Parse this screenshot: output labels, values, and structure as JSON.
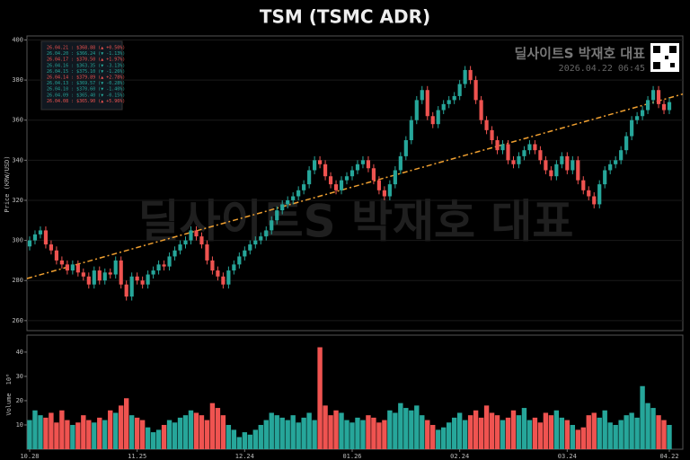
{
  "chart_data": {
    "type": "candlestick",
    "title": "TSM (TSMC ADR)",
    "ylabel": "Price (KRW/USD)",
    "volume_label": "Volume",
    "volume_unit": "10⁶",
    "watermark": "딜사이트S 박재호 대표",
    "stamp_title": "딜사이트S 박재호 대표",
    "stamp_time": "2026.04.22 06:45",
    "up_color": "#26a69a",
    "down_color": "#ef5350",
    "trend_color": "#f0a030",
    "ylim": [
      255,
      402
    ],
    "yticks": [
      260,
      280,
      300,
      320,
      340,
      360,
      380,
      400
    ],
    "volume_ylim": [
      0,
      47
    ],
    "volume_yticks": [
      10,
      20,
      30,
      40
    ],
    "trend": {
      "start": 281,
      "end": 373
    },
    "legend": [
      {
        "text": "26.04.21 : $368.88 (▲ +0.50%)",
        "color": "#ef5350"
      },
      {
        "text": "26.04.20 : $366.24 (▼ -1.13%)",
        "color": "#26a69a"
      },
      {
        "text": "26.04.17 : $370.50 (▲ +1.97%)",
        "color": "#ef5350"
      },
      {
        "text": "26.04.16 : $363.35 (▼ -3.13%)",
        "color": "#26a69a"
      },
      {
        "text": "26.04.15 : $375.10 (▼ -1.26%)",
        "color": "#26a69a"
      },
      {
        "text": "26.04.14 : $379.89 (▲ +2.78%)",
        "color": "#ef5350"
      },
      {
        "text": "26.04.13 : $369.57 (▼ -0.28%)",
        "color": "#26a69a"
      },
      {
        "text": "26.04.10 : $370.60 (▼ -1.40%)",
        "color": "#26a69a"
      },
      {
        "text": "26.04.09 : $365.40 (▼ -0.15%)",
        "color": "#26a69a"
      },
      {
        "text": "26.04.08 : $365.90 (▲ +5.96%)",
        "color": "#ef5350"
      }
    ],
    "categories": [
      "10.28",
      null,
      null,
      null,
      null,
      null,
      null,
      null,
      null,
      null,
      null,
      null,
      null,
      null,
      null,
      null,
      null,
      null,
      null,
      null,
      "11.25",
      null,
      null,
      null,
      null,
      null,
      null,
      null,
      null,
      null,
      null,
      null,
      null,
      null,
      null,
      null,
      null,
      null,
      null,
      null,
      "12.24",
      null,
      null,
      null,
      null,
      null,
      null,
      null,
      null,
      null,
      null,
      null,
      null,
      null,
      null,
      null,
      null,
      null,
      null,
      null,
      "01.26",
      null,
      null,
      null,
      null,
      null,
      null,
      null,
      null,
      null,
      null,
      null,
      null,
      null,
      null,
      null,
      null,
      null,
      null,
      null,
      "02.24",
      null,
      null,
      null,
      null,
      null,
      null,
      null,
      null,
      null,
      null,
      null,
      null,
      null,
      null,
      null,
      null,
      null,
      null,
      null,
      "03.24",
      null,
      null,
      null,
      null,
      null,
      null,
      null,
      null,
      null,
      null,
      null,
      null,
      null,
      null,
      null,
      null,
      null,
      null,
      "04.22"
    ],
    "open": [
      297,
      300,
      303,
      305,
      298,
      295,
      290,
      288,
      285,
      288,
      284,
      282,
      278,
      285,
      280,
      284,
      283,
      290,
      278,
      272,
      282,
      280,
      278,
      283,
      285,
      288,
      287,
      292,
      295,
      298,
      300,
      305,
      302,
      298,
      290,
      285,
      282,
      278,
      285,
      288,
      292,
      295,
      298,
      300,
      302,
      305,
      310,
      315,
      318,
      320,
      322,
      325,
      328,
      335,
      340,
      338,
      332,
      328,
      325,
      330,
      332,
      335,
      338,
      340,
      336,
      330,
      325,
      322,
      328,
      335,
      342,
      350,
      360,
      370,
      375,
      362,
      358,
      365,
      368,
      370,
      372,
      378,
      385,
      380,
      370,
      360,
      355,
      350,
      345,
      348,
      340,
      338,
      342,
      345,
      348,
      345,
      340,
      335,
      332,
      338,
      342,
      335,
      340,
      330,
      325,
      322,
      318,
      328,
      335,
      338,
      340,
      345,
      352,
      360,
      362,
      365,
      370,
      375,
      368,
      365
    ],
    "high": [
      302,
      305,
      307,
      307,
      300,
      297,
      292,
      290,
      290,
      290,
      286,
      284,
      287,
      287,
      286,
      286,
      292,
      292,
      280,
      284,
      284,
      282,
      285,
      287,
      290,
      290,
      294,
      297,
      300,
      302,
      307,
      307,
      304,
      300,
      292,
      287,
      284,
      287,
      290,
      294,
      297,
      300,
      302,
      304,
      307,
      312,
      317,
      320,
      322,
      324,
      327,
      330,
      337,
      342,
      342,
      340,
      334,
      330,
      332,
      334,
      337,
      340,
      342,
      342,
      338,
      332,
      327,
      330,
      337,
      344,
      352,
      362,
      372,
      377,
      377,
      364,
      367,
      370,
      372,
      374,
      380,
      387,
      387,
      382,
      372,
      362,
      357,
      352,
      350,
      350,
      342,
      344,
      347,
      350,
      350,
      347,
      342,
      337,
      340,
      344,
      344,
      342,
      342,
      332,
      327,
      324,
      330,
      337,
      340,
      342,
      347,
      354,
      362,
      364,
      367,
      372,
      377,
      377,
      370,
      371
    ],
    "low": [
      295,
      298,
      301,
      296,
      293,
      288,
      286,
      283,
      283,
      282,
      280,
      276,
      276,
      278,
      278,
      281,
      281,
      276,
      270,
      270,
      278,
      276,
      276,
      281,
      283,
      285,
      285,
      290,
      293,
      296,
      298,
      300,
      296,
      288,
      283,
      280,
      276,
      276,
      283,
      286,
      290,
      293,
      296,
      298,
      300,
      303,
      308,
      313,
      316,
      318,
      320,
      323,
      326,
      333,
      336,
      330,
      326,
      323,
      323,
      328,
      330,
      333,
      336,
      334,
      328,
      323,
      320,
      320,
      326,
      333,
      340,
      348,
      358,
      368,
      360,
      356,
      356,
      363,
      366,
      368,
      370,
      376,
      378,
      368,
      358,
      353,
      348,
      343,
      343,
      338,
      336,
      336,
      340,
      343,
      343,
      338,
      333,
      330,
      330,
      336,
      333,
      333,
      328,
      323,
      320,
      316,
      316,
      326,
      333,
      336,
      338,
      343,
      350,
      358,
      360,
      363,
      368,
      366,
      363,
      363
    ],
    "close": [
      300,
      303,
      305,
      298,
      295,
      290,
      288,
      285,
      288,
      284,
      282,
      278,
      285,
      280,
      284,
      283,
      290,
      278,
      272,
      282,
      280,
      278,
      283,
      285,
      288,
      287,
      292,
      295,
      298,
      300,
      305,
      302,
      298,
      290,
      285,
      282,
      278,
      285,
      288,
      292,
      295,
      298,
      300,
      302,
      305,
      310,
      315,
      318,
      320,
      322,
      325,
      328,
      335,
      340,
      338,
      332,
      328,
      325,
      330,
      332,
      335,
      338,
      340,
      336,
      330,
      325,
      322,
      328,
      335,
      342,
      350,
      360,
      370,
      375,
      362,
      358,
      365,
      368,
      370,
      372,
      378,
      385,
      380,
      370,
      360,
      355,
      350,
      345,
      348,
      340,
      338,
      342,
      345,
      348,
      345,
      340,
      335,
      332,
      338,
      342,
      335,
      340,
      330,
      325,
      322,
      318,
      328,
      335,
      338,
      340,
      345,
      352,
      360,
      362,
      365,
      370,
      375,
      368,
      365,
      369
    ],
    "volume": [
      12,
      16,
      14,
      13,
      15,
      11,
      16,
      12,
      10,
      11,
      14,
      12,
      11,
      13,
      12,
      16,
      15,
      18,
      21,
      14,
      13,
      12,
      9,
      7,
      8,
      10,
      12,
      11,
      13,
      14,
      16,
      15,
      14,
      12,
      19,
      17,
      14,
      10,
      8,
      5,
      7,
      6,
      8,
      10,
      12,
      15,
      14,
      13,
      12,
      14,
      11,
      13,
      15,
      12,
      42,
      18,
      14,
      16,
      15,
      12,
      11,
      13,
      12,
      14,
      13,
      11,
      12,
      16,
      15,
      19,
      17,
      16,
      18,
      14,
      12,
      10,
      8,
      9,
      11,
      13,
      15,
      12,
      14,
      16,
      13,
      18,
      15,
      14,
      12,
      13,
      16,
      14,
      17,
      12,
      13,
      11,
      15,
      14,
      16,
      13,
      12,
      10,
      8,
      9,
      14,
      15,
      13,
      16,
      11,
      10,
      12,
      14,
      15,
      13,
      26,
      19,
      17,
      14,
      12,
      10
    ]
  }
}
